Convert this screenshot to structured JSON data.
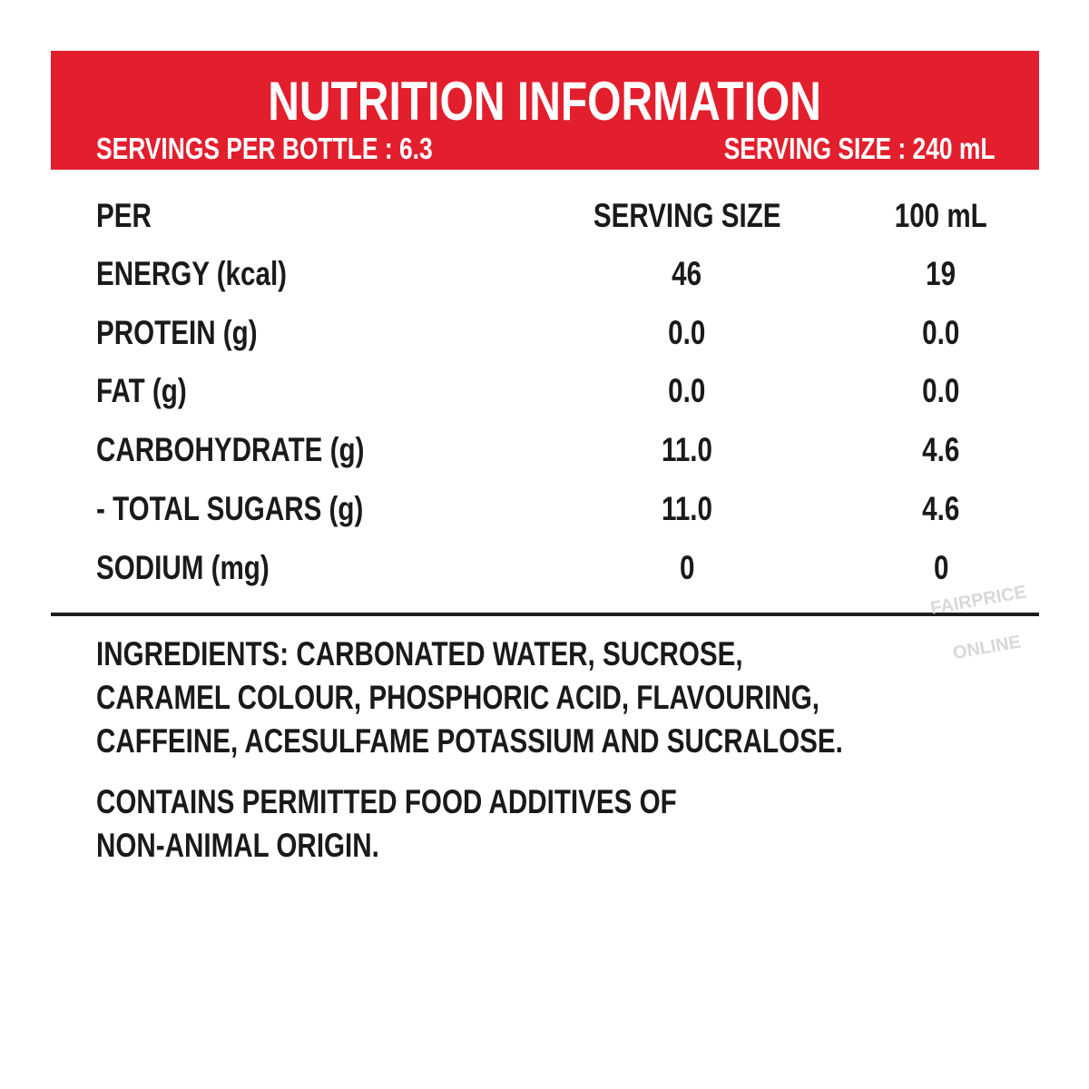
{
  "header": {
    "title": "NUTRITION INFORMATION",
    "servings_per_bottle": "SERVINGS PER BOTTLE : 6.3",
    "serving_size": "SERVING SIZE : 240 mL",
    "color": "#e31e2d"
  },
  "table": {
    "columns": [
      "PER",
      "SERVING SIZE",
      "100 mL"
    ],
    "rows": [
      {
        "label": "ENERGY (kcal)",
        "serving": "46",
        "per100": "19"
      },
      {
        "label": "PROTEIN (g)",
        "serving": "0.0",
        "per100": "0.0"
      },
      {
        "label": "FAT (g)",
        "serving": "0.0",
        "per100": "0.0"
      },
      {
        "label": "CARBOHYDRATE (g)",
        "serving": "11.0",
        "per100": "4.6"
      },
      {
        "label": "- TOTAL SUGARS (g)",
        "serving": "11.0",
        "per100": "4.6"
      },
      {
        "label": "SODIUM (mg)",
        "serving": "0",
        "per100": "0"
      }
    ]
  },
  "ingredients": {
    "lines": [
      "INGREDIENTS: CARBONATED WATER, SUCROSE,",
      "CARAMEL COLOUR, PHOSPHORIC ACID, FLAVOURING,",
      "CAFFEINE, ACESULFAME POTASSIUM AND SUCRALOSE."
    ]
  },
  "additives": {
    "lines": [
      "CONTAINS PERMITTED FOOD ADDITIVES OF",
      "NON-ANIMAL ORIGIN."
    ]
  },
  "watermark": {
    "line1": "FAIRPRICE",
    "line2": "ONLINE"
  }
}
